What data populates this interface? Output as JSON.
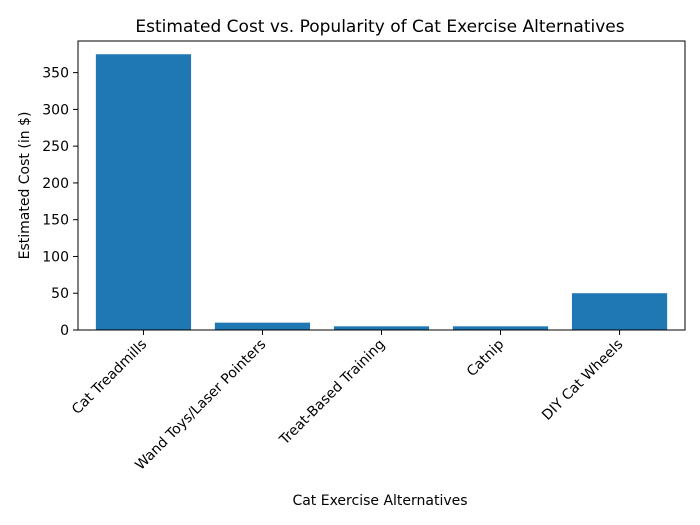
{
  "chart_data": {
    "type": "bar",
    "title": "Estimated Cost vs. Popularity of Cat Exercise Alternatives",
    "xlabel": "Cat Exercise Alternatives",
    "ylabel": "Estimated Cost (in $)",
    "categories": [
      "Cat Treadmills",
      "Wand Toys/Laser Pointers",
      "Treat-Based Training",
      "Catnip",
      "DIY Cat Wheels"
    ],
    "values": [
      375,
      10,
      5,
      5,
      50
    ],
    "ylim": [
      0,
      393
    ],
    "yticks": [
      0,
      50,
      100,
      150,
      200,
      250,
      300,
      350
    ],
    "grid": false,
    "bar_color": "#1f77b4"
  }
}
